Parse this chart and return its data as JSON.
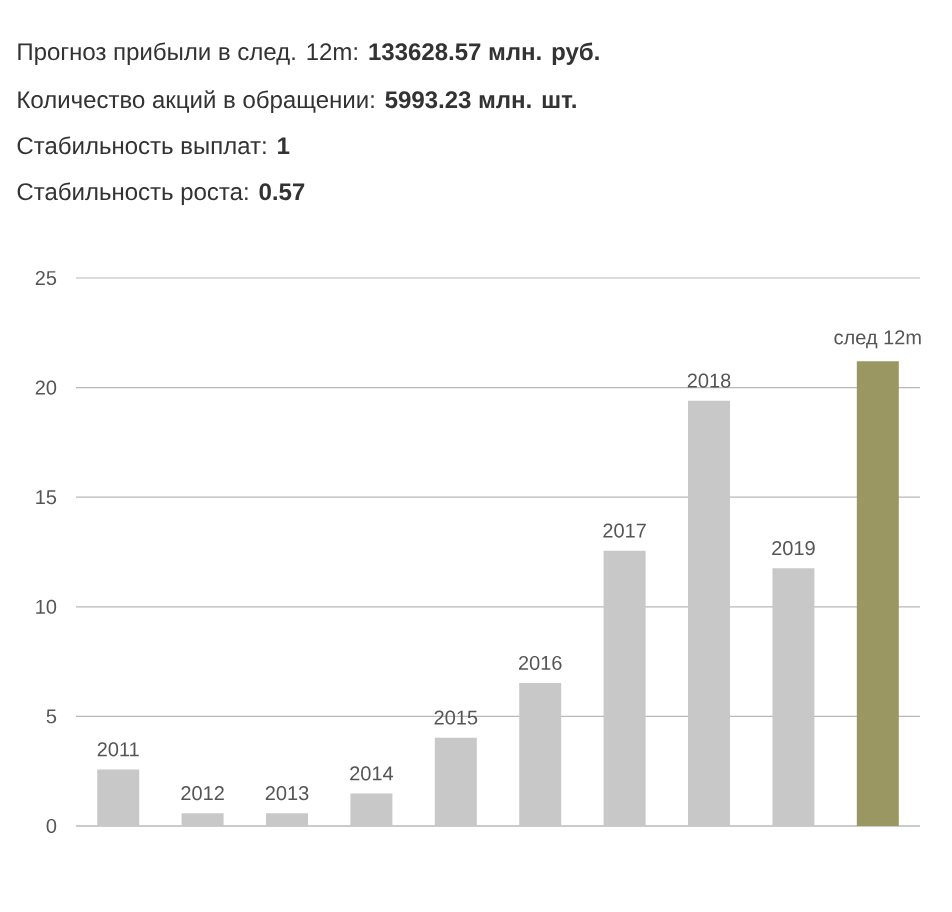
{
  "chart_data": {
    "type": "bar",
    "annotations": [
      "Прогноз прибыли в след. 12m: **133628.57 млн. руб.**",
      "Количество акций в обращении: **5993.23 млн. шт.**",
      "Стабильность выплат: **1**",
      "Стабильность роста: **0.57**"
    ],
    "categories": [
      "2011",
      "2012",
      "2013",
      "2014",
      "2015",
      "2016",
      "2017",
      "2018",
      "2019",
      "след 12m"
    ],
    "values": [
      2.58,
      0.58,
      0.58,
      1.48,
      4.03,
      6.52,
      12.56,
      19.4,
      11.76,
      21.2
    ],
    "colors": [
      "#c8c8c8",
      "#c8c8c8",
      "#c8c8c8",
      "#c8c8c8",
      "#c8c8c8",
      "#c8c8c8",
      "#c8c8c8",
      "#c8c8c8",
      "#c8c8c8",
      "#9a9762"
    ],
    "ylim": [
      0,
      25
    ],
    "yticks": [
      0,
      5,
      10,
      15,
      20,
      25
    ],
    "grid": "y"
  }
}
